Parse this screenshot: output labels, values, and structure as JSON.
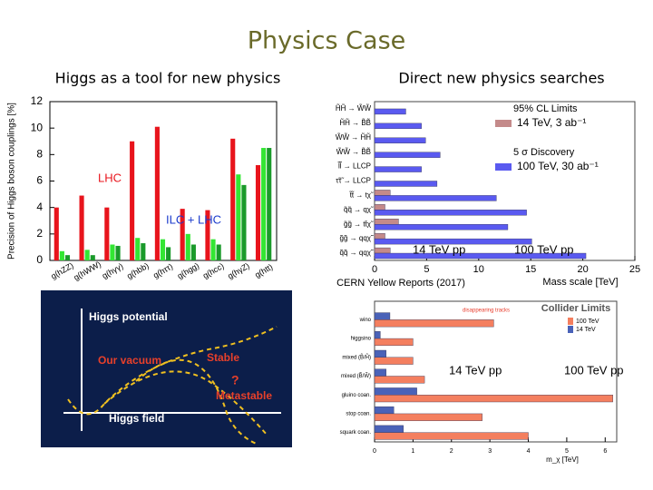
{
  "slide": {
    "title": "Physics Case",
    "left_heading": "Higgs as a tool for new physics",
    "right_heading": "Direct new physics searches",
    "source": "CERN Yellow Reports (2017)"
  },
  "diagram": {
    "title": "Higgs potential",
    "vacuum": "Our vacuum",
    "stable": "Stable",
    "question": "?",
    "metastable": "Metastable",
    "axis": "Higgs field"
  },
  "chart_data": [
    {
      "type": "bar",
      "ylabel": "Precision of Higgs boson couplings [%]",
      "categories": [
        "g(hZZ)",
        "g(hWW)",
        "g(hγγ)",
        "g(hbb)",
        "g(hττ)",
        "g(hgg)",
        "g(hcc)",
        "g(hγZ)",
        "g(htt)"
      ],
      "series": [
        {
          "color": "#e8141c",
          "values": [
            4.0,
            4.9,
            4.0,
            9.0,
            10.1,
            3.9,
            3.8,
            9.2,
            7.2
          ]
        },
        {
          "color": "#33e633",
          "values": [
            0.7,
            0.8,
            1.2,
            1.7,
            1.6,
            2.0,
            1.6,
            6.5,
            8.5
          ]
        },
        {
          "color": "#1a9a2a",
          "values": [
            0.4,
            0.4,
            1.1,
            1.3,
            1.0,
            1.2,
            1.2,
            5.7,
            8.5
          ]
        }
      ],
      "annotations": [
        "LHC",
        "ILC + LHC"
      ],
      "ylim": [
        0,
        12
      ],
      "yticks": [
        0,
        2,
        4,
        6,
        8,
        10,
        12
      ]
    },
    {
      "type": "hbar",
      "xlabel": "Mass scale [TeV]",
      "categories": [
        "H̃H̃ → W̃W̃",
        "H̃H̃ → B̃B̃",
        "W̃W̃ → H̃H̃",
        "W̃W̃ → B̃B̃",
        "l̃l̃ → LLCP",
        "τ̃τ̃ → LLCP",
        "t̃t̃ → tχ̃",
        "q̃q̃ → qχ̃",
        "g̃g̃ → tt̄χ̃",
        "g̃g̃ → qqχ̃",
        "q̃q̃ → qqχ̃"
      ],
      "series": [
        {
          "name": "14 TeV, 3 ab⁻¹",
          "color": "#c48a8a",
          "values": [
            null,
            null,
            null,
            null,
            null,
            null,
            1.5,
            1.0,
            2.3,
            1.0,
            1.5
          ]
        },
        {
          "name": "100 TeV, 30 ab⁻¹",
          "color": "#5a5af0",
          "values": [
            3.0,
            4.5,
            4.9,
            6.3,
            4.5,
            6.0,
            11.7,
            14.6,
            12.8,
            15.1,
            20.3
          ]
        }
      ],
      "legend_headings": [
        "95% CL Limits",
        "5 σ Discovery"
      ],
      "legend": "upper right",
      "annotations": [
        "14 TeV pp",
        "100 TeV pp"
      ],
      "xlim": [
        0,
        25
      ],
      "xticks": [
        0,
        5,
        10,
        15,
        20,
        25
      ]
    },
    {
      "type": "hbar",
      "title": "Collider Limits",
      "xlabel": "m_χ [TeV]",
      "categories": [
        "wino",
        "higgsino",
        "mixed (B̃/H̃)",
        "mixed (B̃/W̃)",
        "gluino coan.",
        "stop coan.",
        "squark coan."
      ],
      "series": [
        {
          "name": "14 TeV",
          "color": "#4a62b8",
          "values": [
            0.4,
            0.15,
            0.3,
            0.3,
            1.1,
            0.5,
            0.75
          ]
        },
        {
          "name": "100 TeV",
          "color": "#f47f5f",
          "values": [
            3.1,
            1.0,
            1.0,
            1.3,
            6.2,
            2.8,
            4.0
          ]
        }
      ],
      "legend": "upper right",
      "annotations": [
        "disappearing tracks",
        "14 TeV pp",
        "100 TeV pp"
      ],
      "xlim": [
        0,
        6.3
      ],
      "xticks": [
        0,
        1,
        2,
        3,
        4,
        5,
        6
      ]
    }
  ]
}
